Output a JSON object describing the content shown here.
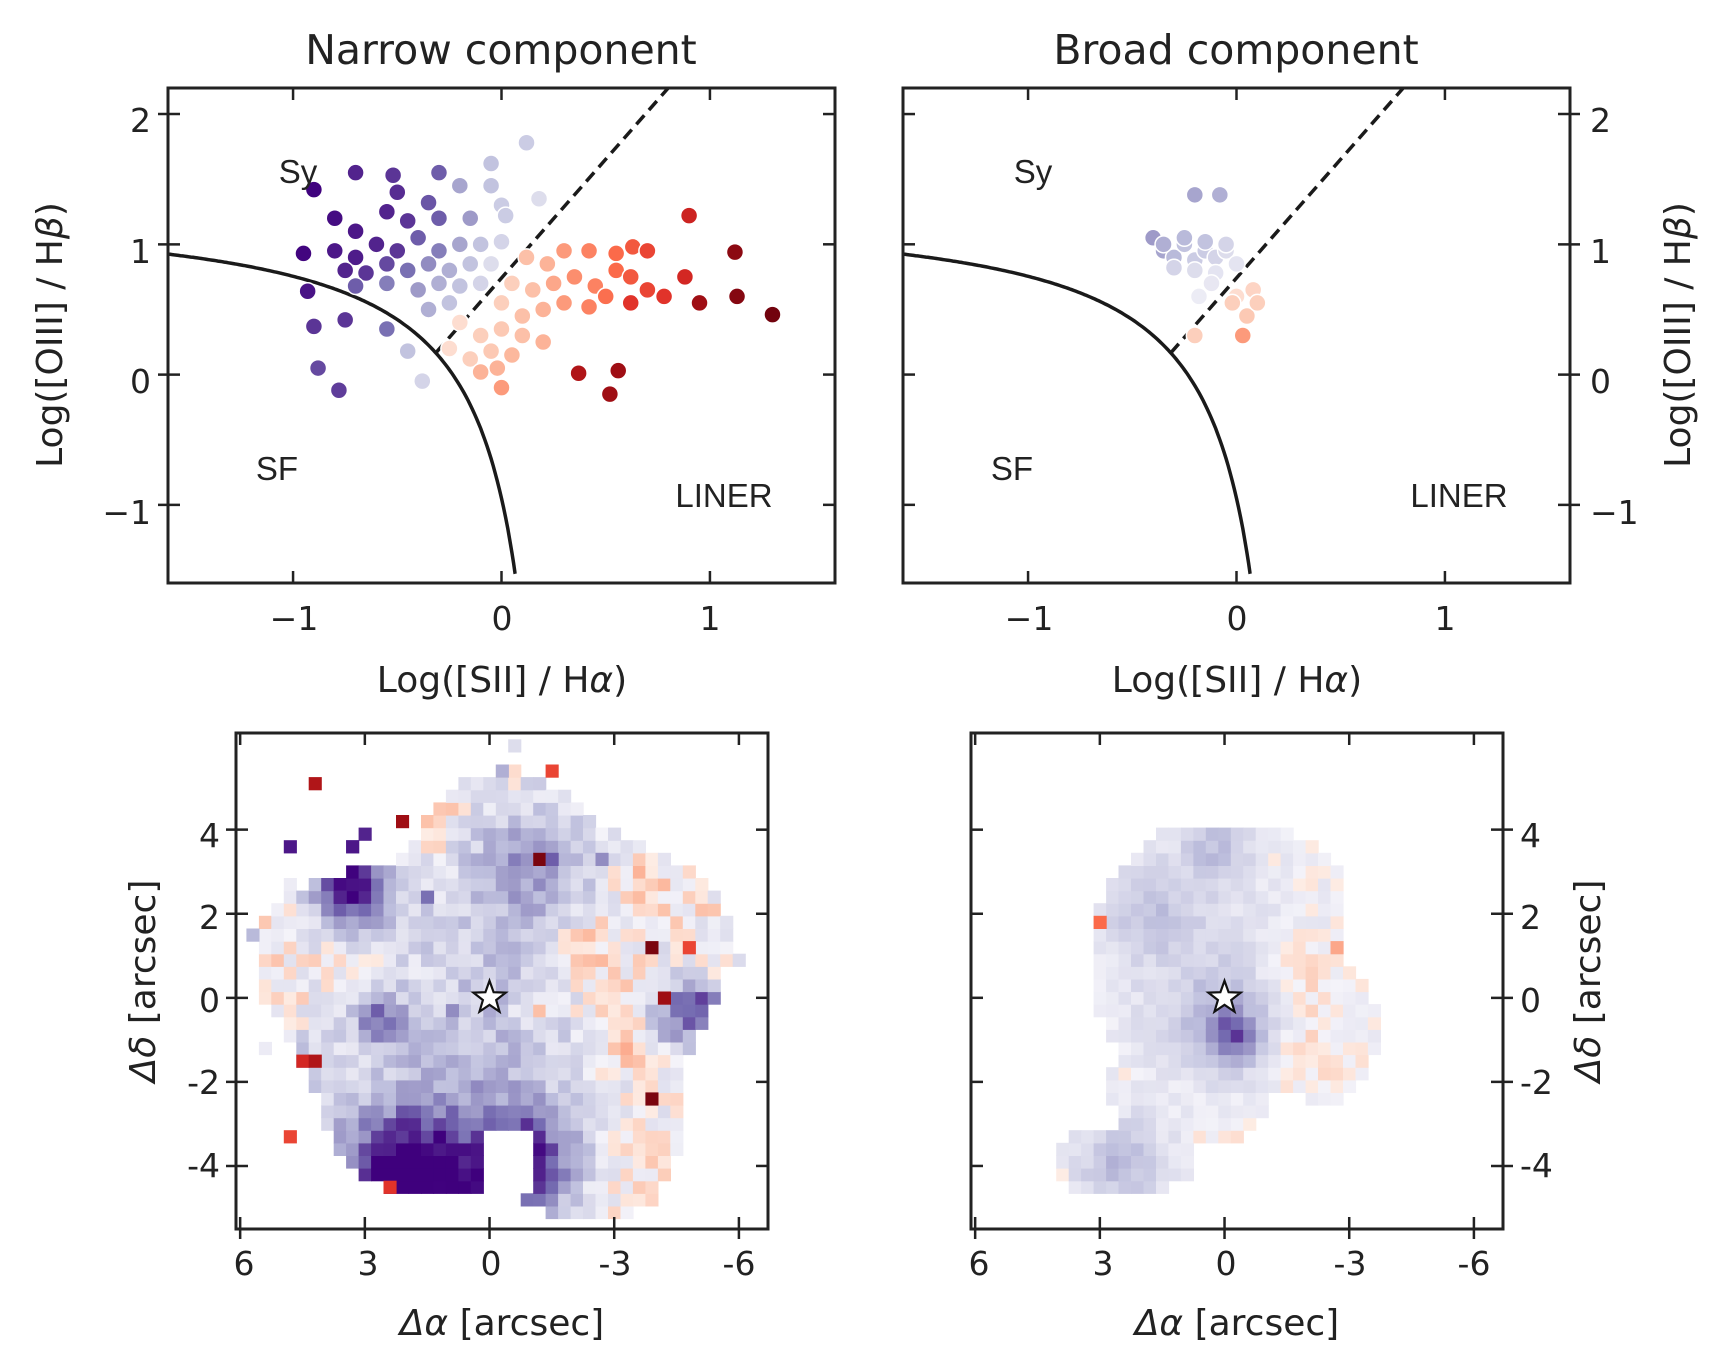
{
  "chart_data": [
    {
      "type": "scatter",
      "panel": "bpt-narrow",
      "title": "Narrow component",
      "xlabel_prefix": "Log([SII] / H",
      "xlabel_greek": "α",
      "xlabel_suffix": ")",
      "ylabel_prefix": "Log([OIII] / H",
      "ylabel_greek": "β",
      "ylabel_suffix": ")",
      "xlim": [
        -1.6,
        1.6
      ],
      "ylim": [
        -1.6,
        2.2
      ],
      "xticks": [
        -1,
        0,
        1
      ],
      "xtick_labels": [
        "−1",
        "0",
        "1"
      ],
      "yticks": [
        -1,
        0,
        1,
        2
      ],
      "ytick_labels": [
        "−1",
        "0",
        "1",
        "2"
      ],
      "region_labels": {
        "sy": "Sy",
        "sf": "SF",
        "liner": "LINER"
      },
      "points": [
        [
          -0.9,
          1.42,
          -0.99
        ],
        [
          -0.7,
          1.55,
          -0.85
        ],
        [
          -0.52,
          1.53,
          -0.8
        ],
        [
          -0.3,
          1.55,
          -0.7
        ],
        [
          -0.05,
          1.62,
          -0.3
        ],
        [
          0.12,
          1.78,
          -0.25
        ],
        [
          -0.5,
          1.4,
          -0.82
        ],
        [
          -0.35,
          1.32,
          -0.72
        ],
        [
          -0.2,
          1.45,
          -0.45
        ],
        [
          -0.05,
          1.45,
          -0.3
        ],
        [
          0.0,
          1.3,
          -0.25
        ],
        [
          0.18,
          1.35,
          -0.15
        ],
        [
          -0.8,
          1.2,
          -0.95
        ],
        [
          -0.7,
          1.1,
          -0.9
        ],
        [
          -0.55,
          1.25,
          -0.85
        ],
        [
          -0.45,
          1.18,
          -0.8
        ],
        [
          -0.3,
          1.2,
          -0.7
        ],
        [
          -0.15,
          1.2,
          -0.5
        ],
        [
          0.02,
          1.22,
          -0.25
        ],
        [
          -0.8,
          0.95,
          -0.9
        ],
        [
          -0.7,
          0.9,
          -0.88
        ],
        [
          -0.6,
          1.0,
          -0.85
        ],
        [
          -0.5,
          0.95,
          -0.8
        ],
        [
          -0.4,
          1.05,
          -0.7
        ],
        [
          -0.3,
          0.95,
          -0.6
        ],
        [
          -0.2,
          1.0,
          -0.45
        ],
        [
          -0.1,
          1.0,
          -0.3
        ],
        [
          0.0,
          1.02,
          -0.2
        ],
        [
          -0.75,
          0.8,
          -0.85
        ],
        [
          -0.65,
          0.78,
          -0.8
        ],
        [
          -0.55,
          0.85,
          -0.75
        ],
        [
          -0.45,
          0.8,
          -0.65
        ],
        [
          -0.35,
          0.85,
          -0.55
        ],
        [
          -0.25,
          0.8,
          -0.4
        ],
        [
          -0.15,
          0.85,
          -0.3
        ],
        [
          -0.05,
          0.85,
          -0.15
        ],
        [
          -0.7,
          0.68,
          -0.7
        ],
        [
          -0.55,
          0.7,
          -0.6
        ],
        [
          -0.4,
          0.65,
          -0.5
        ],
        [
          -0.3,
          0.7,
          -0.4
        ],
        [
          -0.2,
          0.68,
          -0.3
        ],
        [
          -0.1,
          0.7,
          -0.2
        ],
        [
          -0.95,
          0.93,
          -0.98
        ],
        [
          -0.93,
          0.64,
          -0.92
        ],
        [
          -0.9,
          0.37,
          -0.8
        ],
        [
          -0.88,
          0.05,
          -0.75
        ],
        [
          -0.78,
          -0.12,
          -0.78
        ],
        [
          -0.75,
          0.42,
          -0.8
        ],
        [
          -0.55,
          0.35,
          -0.65
        ],
        [
          -0.45,
          0.18,
          -0.3
        ],
        [
          -0.38,
          -0.05,
          -0.2
        ],
        [
          -0.35,
          0.5,
          -0.4
        ],
        [
          -0.25,
          0.55,
          -0.3
        ],
        [
          0.12,
          0.9,
          0.15
        ],
        [
          0.22,
          0.85,
          0.2
        ],
        [
          0.3,
          0.95,
          0.3
        ],
        [
          0.42,
          0.95,
          0.4
        ],
        [
          0.55,
          0.93,
          0.5
        ],
        [
          0.63,
          0.98,
          0.55
        ],
        [
          0.7,
          0.95,
          0.6
        ],
        [
          0.05,
          0.7,
          0.1
        ],
        [
          0.15,
          0.65,
          0.15
        ],
        [
          0.25,
          0.7,
          0.25
        ],
        [
          0.35,
          0.75,
          0.35
        ],
        [
          0.45,
          0.68,
          0.4
        ],
        [
          0.55,
          0.8,
          0.5
        ],
        [
          0.62,
          0.75,
          0.55
        ],
        [
          0.0,
          0.55,
          0.1
        ],
        [
          0.1,
          0.45,
          0.15
        ],
        [
          0.2,
          0.5,
          0.2
        ],
        [
          0.3,
          0.55,
          0.3
        ],
        [
          0.42,
          0.52,
          0.4
        ],
        [
          0.5,
          0.6,
          0.48
        ],
        [
          -0.2,
          0.4,
          0.05
        ],
        [
          -0.1,
          0.3,
          0.1
        ],
        [
          0.0,
          0.35,
          0.12
        ],
        [
          0.1,
          0.3,
          0.15
        ],
        [
          0.2,
          0.25,
          0.2
        ],
        [
          -0.25,
          0.2,
          0.05
        ],
        [
          -0.15,
          0.12,
          0.1
        ],
        [
          -0.05,
          0.18,
          0.12
        ],
        [
          0.05,
          0.15,
          0.18
        ],
        [
          -0.02,
          0.05,
          0.2
        ],
        [
          -0.1,
          0.02,
          0.2
        ],
        [
          0.0,
          -0.1,
          0.3
        ],
        [
          0.7,
          0.65,
          0.6
        ],
        [
          0.78,
          0.6,
          0.65
        ],
        [
          0.88,
          0.75,
          0.7
        ],
        [
          0.9,
          1.22,
          0.72
        ],
        [
          0.62,
          0.55,
          0.65
        ],
        [
          0.95,
          0.55,
          0.85
        ],
        [
          1.12,
          0.94,
          0.9
        ],
        [
          1.13,
          0.6,
          0.92
        ],
        [
          1.3,
          0.46,
          0.97
        ],
        [
          0.37,
          0.01,
          0.8
        ],
        [
          0.52,
          -0.15,
          0.85
        ],
        [
          0.56,
          0.03,
          0.85
        ]
      ]
    },
    {
      "type": "scatter",
      "panel": "bpt-broad",
      "title": "Broad component",
      "xlabel_prefix": "Log([SII] / H",
      "xlabel_greek": "α",
      "xlabel_suffix": ")",
      "ylabel_prefix": "Log([OIII] / H",
      "ylabel_greek": "β",
      "ylabel_suffix": ")",
      "xlim": [
        -1.6,
        1.6
      ],
      "ylim": [
        -1.6,
        2.2
      ],
      "xticks": [
        -1,
        0,
        1
      ],
      "xtick_labels": [
        "−1",
        "0",
        "1"
      ],
      "yticks": [
        -1,
        0,
        1,
        2
      ],
      "ytick_labels": [
        "−1",
        "0",
        "1",
        "2"
      ],
      "region_labels": {
        "sy": "Sy",
        "sf": "SF",
        "liner": "LINER"
      },
      "points": [
        [
          -0.2,
          1.38,
          -0.45
        ],
        [
          -0.08,
          1.38,
          -0.4
        ],
        [
          -0.4,
          1.05,
          -0.5
        ],
        [
          -0.35,
          0.95,
          -0.45
        ],
        [
          -0.3,
          0.9,
          -0.35
        ],
        [
          -0.25,
          1.0,
          -0.3
        ],
        [
          -0.2,
          0.88,
          -0.25
        ],
        [
          -0.15,
          0.95,
          -0.25
        ],
        [
          -0.1,
          0.9,
          -0.2
        ],
        [
          -0.05,
          0.95,
          -0.15
        ],
        [
          -0.3,
          0.82,
          -0.2
        ],
        [
          -0.2,
          0.8,
          -0.15
        ],
        [
          -0.1,
          0.78,
          -0.1
        ],
        [
          -0.35,
          1.0,
          -0.4
        ],
        [
          -0.25,
          1.05,
          -0.35
        ],
        [
          -0.15,
          1.02,
          -0.3
        ],
        [
          -0.05,
          1.0,
          -0.2
        ],
        [
          0.0,
          0.85,
          -0.1
        ],
        [
          -0.12,
          0.7,
          -0.08
        ],
        [
          0.0,
          0.6,
          0.05
        ],
        [
          0.08,
          0.65,
          0.08
        ],
        [
          0.05,
          0.45,
          0.12
        ],
        [
          -0.02,
          0.55,
          0.1
        ],
        [
          0.1,
          0.55,
          0.1
        ],
        [
          -0.18,
          0.6,
          -0.05
        ],
        [
          -0.2,
          0.3,
          0.1
        ],
        [
          0.03,
          0.3,
          0.3
        ]
      ]
    },
    {
      "type": "heatmap",
      "panel": "map-narrow",
      "xlabel_greek": "Δα",
      "xlabel_suffix": " [arcsec]",
      "ylabel_greek": "Δδ",
      "ylabel_suffix": " [arcsec]",
      "xlim": [
        6.1,
        -6.7
      ],
      "ylim": [
        -5.5,
        6.3
      ],
      "xticks": [
        6,
        3,
        0,
        -3,
        -6
      ],
      "xtick_labels": [
        "6",
        "3",
        "0",
        "-3",
        "-6"
      ],
      "yticks": [
        -4,
        -2,
        0,
        2,
        4
      ],
      "ytick_labels": [
        "-4",
        "-2",
        "0",
        "2",
        "4"
      ],
      "pixel_size": 0.3,
      "nucleus": [
        0,
        0
      ],
      "blobs": [
        [
          0.0,
          2.2,
          3.2,
          -0.12
        ],
        [
          -0.5,
          -0.3,
          3.0,
          -0.15
        ],
        [
          0.8,
          -3.2,
          2.6,
          -0.3
        ],
        [
          2.6,
          -4.2,
          1.6,
          -0.55
        ],
        [
          1.5,
          -4.4,
          1.4,
          -0.55
        ],
        [
          -1.0,
          -3.8,
          1.2,
          -0.5
        ],
        [
          -0.4,
          -4.6,
          1.3,
          -0.35
        ],
        [
          3.5,
          3.0,
          1.0,
          -0.6
        ],
        [
          3.2,
          2.4,
          0.8,
          -0.5
        ],
        [
          -3.0,
          0.0,
          0.9,
          0.2
        ],
        [
          -3.4,
          -1.0,
          0.7,
          0.25
        ],
        [
          -1.2,
          -0.2,
          0.5,
          0.4
        ],
        [
          -4.5,
          -0.4,
          0.8,
          -0.55
        ],
        [
          -1.0,
          3.2,
          1.4,
          -0.35
        ],
        [
          2.7,
          -0.5,
          0.6,
          -0.55
        ],
        [
          4.5,
          -1.5,
          0.7,
          -0.3
        ],
        [
          -2.4,
          1.3,
          0.7,
          0.25
        ],
        [
          -3.8,
          2.6,
          0.9,
          0.15
        ],
        [
          1.6,
          4.3,
          0.9,
          0.2
        ],
        [
          -5.3,
          -0.2,
          0.6,
          -0.5
        ]
      ],
      "cells": [
        [
          4.2,
          5.0,
          0.8
        ],
        [
          2.0,
          4.2,
          0.85
        ],
        [
          -1.2,
          3.3,
          0.95
        ],
        [
          -3.8,
          1.2,
          0.95
        ],
        [
          -4.2,
          0.0,
          0.85
        ],
        [
          -3.9,
          -2.4,
          0.95
        ],
        [
          4.6,
          -1.6,
          0.7
        ],
        [
          4.3,
          -1.4,
          0.8
        ],
        [
          4.9,
          -3.3,
          0.6
        ],
        [
          2.5,
          -4.6,
          0.65
        ],
        [
          -1.6,
          5.4,
          0.6
        ],
        [
          -4.8,
          1.2,
          0.6
        ],
        [
          4.7,
          3.6,
          -0.9
        ],
        [
          3.1,
          4.0,
          -0.85
        ],
        [
          3.2,
          3.6,
          -0.9
        ],
        [
          3.5,
          2.5,
          -0.85
        ],
        [
          -0.4,
          5.5,
          -0.4
        ],
        [
          5.6,
          1.5,
          -0.35
        ],
        [
          -1.5,
          3.4,
          -0.7
        ],
        [
          -2.7,
          3.4,
          -0.55
        ],
        [
          1.4,
          2.3,
          -0.65
        ],
        [
          1.0,
          -0.3,
          -0.55
        ],
        [
          2.8,
          -0.3,
          -0.7
        ]
      ]
    },
    {
      "type": "heatmap",
      "panel": "map-broad",
      "xlabel_greek": "Δα",
      "xlabel_suffix": " [arcsec]",
      "ylabel_greek": "Δδ",
      "ylabel_suffix": " [arcsec]",
      "xlim": [
        6.1,
        -6.7
      ],
      "ylim": [
        -5.5,
        6.3
      ],
      "xticks": [
        6,
        3,
        0,
        -3,
        -6
      ],
      "xtick_labels": [
        "6",
        "3",
        "0",
        "-3",
        "-6"
      ],
      "yticks": [
        -4,
        -2,
        0,
        2,
        4
      ],
      "ytick_labels": [
        "-4",
        "-2",
        "0",
        "2",
        "4"
      ],
      "pixel_size": 0.3,
      "nucleus": [
        0,
        0
      ],
      "blobs": [
        [
          0.4,
          0.8,
          2.8,
          -0.15
        ],
        [
          0.0,
          -0.6,
          1.2,
          -0.3
        ],
        [
          -0.2,
          -0.9,
          0.6,
          -0.4
        ],
        [
          1.8,
          2.2,
          1.2,
          -0.2
        ],
        [
          -1.6,
          0.4,
          1.1,
          0.12
        ],
        [
          -2.0,
          -1.2,
          0.8,
          0.08
        ],
        [
          0.2,
          3.6,
          0.8,
          -0.25
        ],
        [
          2.5,
          -3.9,
          1.1,
          -0.35
        ]
      ],
      "cells": [
        [
          3.0,
          1.8,
          0.5
        ],
        [
          -2.7,
          1.1,
          0.25
        ]
      ]
    }
  ]
}
